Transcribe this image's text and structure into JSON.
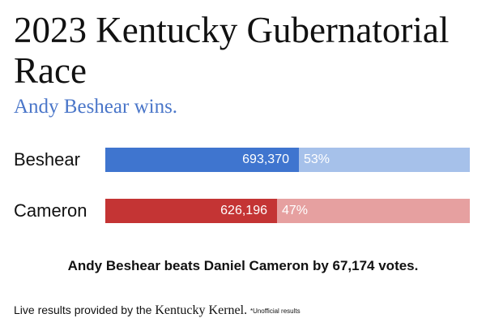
{
  "title": "2023 Kentucky Gubernatorial Race",
  "subtitle": "Andy Beshear wins.",
  "colors": {
    "beshear_dark": "#3f75cf",
    "beshear_light": "#a6c1ea",
    "cameron_dark": "#c43434",
    "cameron_light": "#e6a0a0",
    "subtitle": "#4a76c9"
  },
  "chart_data": {
    "type": "bar",
    "categories": [
      "Beshear",
      "Cameron"
    ],
    "values": [
      693370,
      626196
    ],
    "value_labels": [
      "693,370",
      "626,196"
    ],
    "percent_labels": [
      "53%",
      "47%"
    ],
    "percents": [
      53,
      47
    ],
    "xlim": [
      0,
      100
    ]
  },
  "summary": "Andy Beshear beats Daniel Cameron by 67,174 votes.",
  "footer": {
    "text": "Live results provided by the",
    "brand": "Kentucky Kernel.",
    "note": "*Unofficial results"
  }
}
